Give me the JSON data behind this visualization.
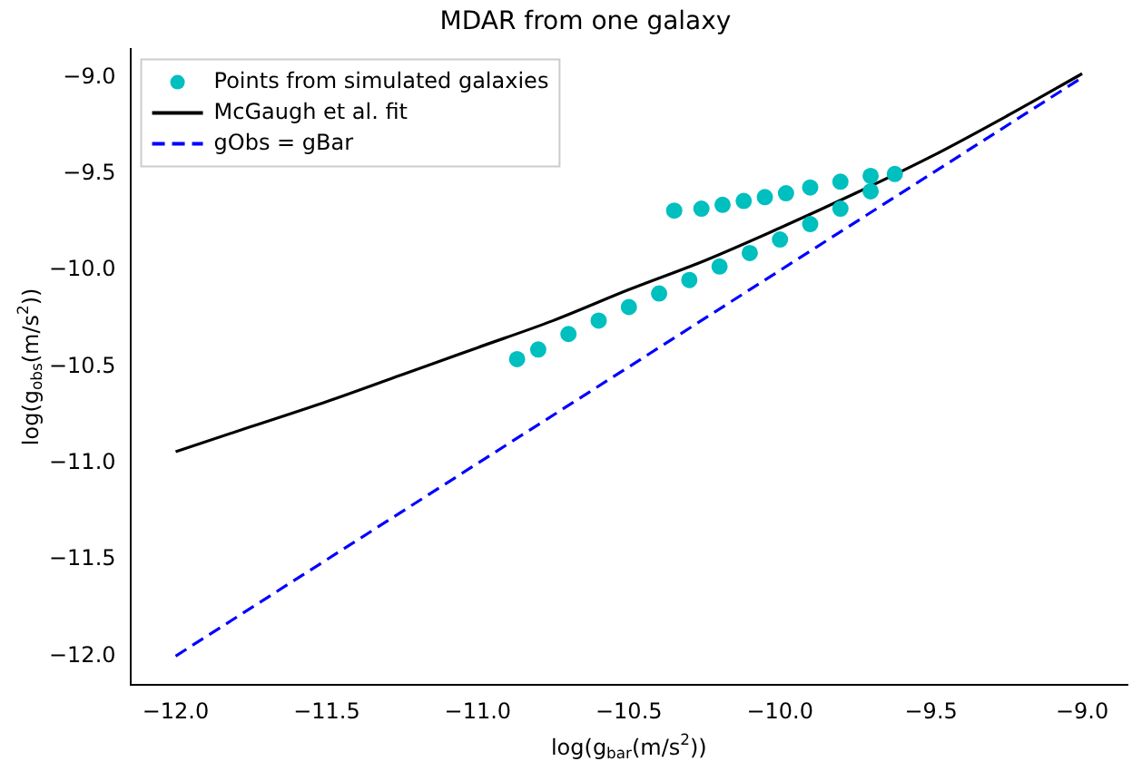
{
  "chart_data": {
    "type": "scatter",
    "title": "MDAR from one galaxy",
    "xlabel": "log(g$_{bar}$(m/s$^{2}$))",
    "ylabel": "log(g$_{obs}$(m/s$^{2}$))",
    "xlim": [
      -12.15,
      -8.85
    ],
    "ylim": [
      -12.15,
      -8.85
    ],
    "xticks": [
      {
        "value": -12,
        "label": "−12.0"
      },
      {
        "value": -11.5,
        "label": "−11.5"
      },
      {
        "value": -11,
        "label": "−11.0"
      },
      {
        "value": -10.5,
        "label": "−10.5"
      },
      {
        "value": -10,
        "label": "−10.0"
      },
      {
        "value": -9.5,
        "label": "−9.5"
      },
      {
        "value": -9,
        "label": "−9.0"
      }
    ],
    "yticks": [
      {
        "value": -12,
        "label": "−12.0"
      },
      {
        "value": -11.5,
        "label": "−11.5"
      },
      {
        "value": -11,
        "label": "−11.0"
      },
      {
        "value": -10.5,
        "label": "−10.5"
      },
      {
        "value": -10,
        "label": "−10.0"
      },
      {
        "value": -9.5,
        "label": "−9.5"
      },
      {
        "value": -9,
        "label": "−9.0"
      }
    ],
    "grid": false,
    "legend": "top left",
    "series": [
      {
        "name": "Points from simulated galaxies",
        "marker": "circle",
        "color": "#00bfbf",
        "x": [
          -10.87,
          -10.8,
          -10.7,
          -10.6,
          -10.5,
          -10.4,
          -10.3,
          -10.2,
          -10.1,
          -10.0,
          -9.9,
          -9.8,
          -9.7,
          -9.62,
          -9.7,
          -9.8,
          -9.9,
          -9.98,
          -10.05,
          -10.12,
          -10.19,
          -10.26,
          -10.35
        ],
        "values": [
          -10.46,
          -10.41,
          -10.33,
          -10.26,
          -10.19,
          -10.12,
          -10.05,
          -9.98,
          -9.91,
          -9.84,
          -9.76,
          -9.68,
          -9.59,
          -9.5,
          -9.51,
          -9.54,
          -9.57,
          -9.6,
          -9.62,
          -9.64,
          -9.66,
          -9.68,
          -9.69
        ]
      },
      {
        "name": "McGaugh et al. fit",
        "type": "line",
        "marker": "none",
        "color": "#000000",
        "line_style": "solid",
        "x": [
          -12,
          -11.75,
          -11.5,
          -11.25,
          -11,
          -10.75,
          -10.5,
          -10.25,
          -10,
          -9.75,
          -9.5,
          -9.25,
          -9
        ],
        "values": [
          -10.94,
          -10.81,
          -10.68,
          -10.54,
          -10.4,
          -10.26,
          -10.1,
          -9.95,
          -9.78,
          -9.6,
          -9.41,
          -9.2,
          -8.98
        ]
      },
      {
        "name": "gObs = gBar",
        "type": "line",
        "marker": "none",
        "color": "#0000ff",
        "line_style": "dashed",
        "x": [
          -12,
          -9
        ],
        "values": [
          -12,
          -9
        ]
      }
    ]
  }
}
